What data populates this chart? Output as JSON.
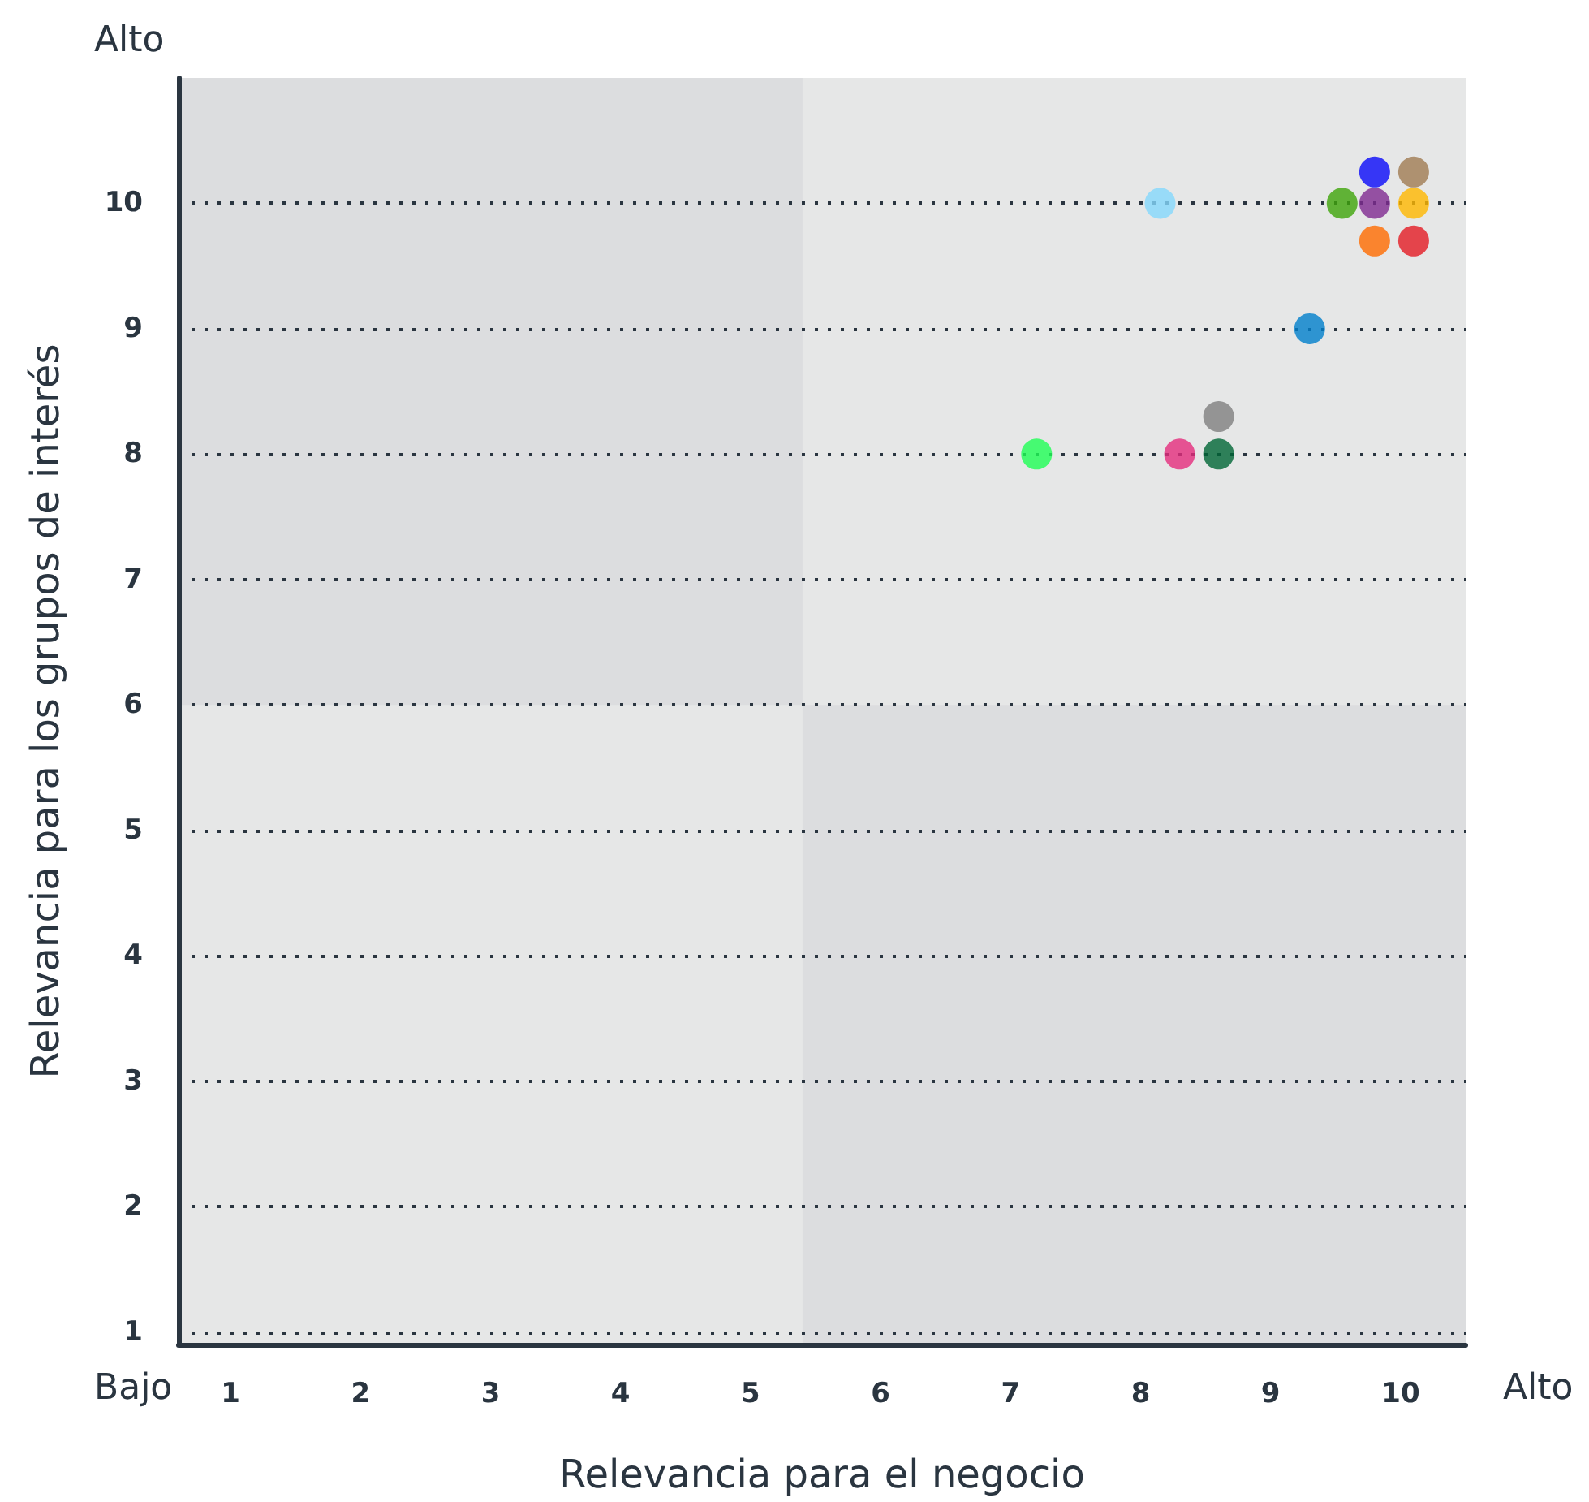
{
  "chart_data": {
    "type": "scatter",
    "xlabel": "Relevancia para el negocio",
    "ylabel": "Relevancia para los grupos de interés",
    "annotations": [
      "Bajo",
      "Alto",
      "Alto"
    ],
    "x": [
      8.15,
      9.8,
      10.1,
      9.55,
      9.8,
      10.1,
      9.8,
      10.1,
      9.3,
      7.2,
      8.3,
      8.6,
      8.6
    ],
    "values": [
      10,
      10.25,
      10.25,
      10,
      10,
      10,
      9.7,
      9.7,
      9,
      8,
      8,
      8.3,
      8
    ],
    "colors": [
      "#85d8fd",
      "#0a0afa",
      "#a07c52",
      "#3ea50a",
      "#7f2b91",
      "#ffb800",
      "#ff6c00",
      "#e31c24",
      "#0080cc",
      "#1eff55",
      "#e52d7d",
      "#808080",
      "#006636"
    ],
    "xlim": [
      0.6,
      10.5
    ],
    "ylim": [
      0.9,
      11
    ],
    "xticks": [
      1,
      2,
      3,
      4,
      5,
      6,
      7,
      8,
      9,
      10
    ],
    "yticks": [
      1,
      2,
      3,
      4,
      5,
      6,
      7,
      8,
      9,
      10
    ],
    "bands": [
      {
        "axis": "x",
        "from": 0.6,
        "to": 5.4,
        "color": "#dcdddf"
      },
      {
        "axis": "y",
        "from": 0.9,
        "to": 6,
        "color": "#dcdddf"
      }
    ],
    "grid": "y",
    "marker": "circle"
  }
}
